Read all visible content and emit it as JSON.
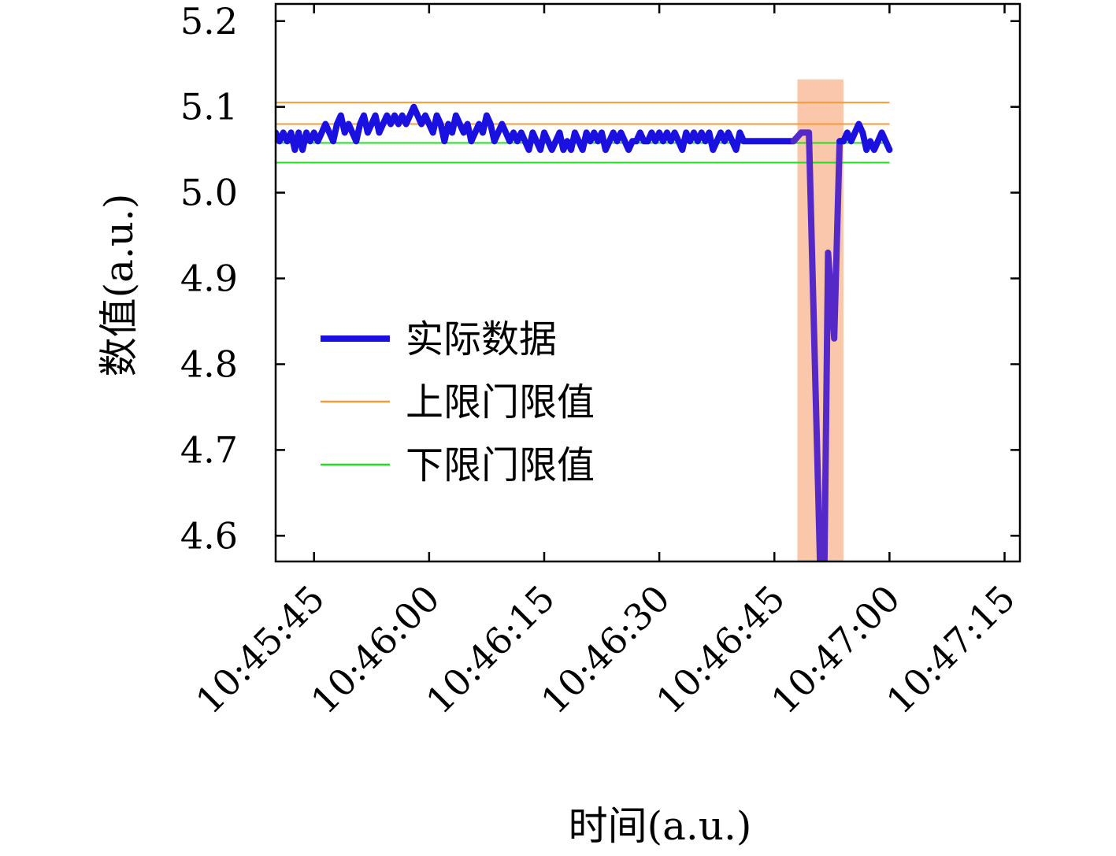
{
  "chart_data": {
    "type": "line",
    "title": "",
    "xlabel": "时间(a.u.)",
    "ylabel": "数值(a.u.)",
    "x_unit": "time",
    "xlim": [
      "10:45:40",
      "10:47:17"
    ],
    "ylim": [
      4.57,
      5.22
    ],
    "xticks": [
      "10:45:45",
      "10:46:00",
      "10:46:15",
      "10:46:30",
      "10:46:45",
      "10:47:00",
      "10:47:15"
    ],
    "yticks": [
      "4.6",
      "4.7",
      "4.8",
      "4.9",
      "5.0",
      "5.1",
      "5.2"
    ],
    "grid": false,
    "legend_position": "center-left",
    "series": [
      {
        "name": "实际数据",
        "color": "#1a10e0",
        "anomaly_color": "#5528c8",
        "points": [
          [
            "10:45:40.0",
            5.07
          ],
          [
            "10:45:40.5",
            5.06
          ],
          [
            "10:45:41.0",
            5.07
          ],
          [
            "10:45:41.5",
            5.06
          ],
          [
            "10:45:42.0",
            5.07
          ],
          [
            "10:45:42.5",
            5.05
          ],
          [
            "10:45:43.0",
            5.07
          ],
          [
            "10:45:43.5",
            5.05
          ],
          [
            "10:45:44.0",
            5.07
          ],
          [
            "10:45:44.5",
            5.06
          ],
          [
            "10:45:45.0",
            5.07
          ],
          [
            "10:45:45.5",
            5.06
          ],
          [
            "10:45:46.0",
            5.07
          ],
          [
            "10:45:46.5",
            5.08
          ],
          [
            "10:45:47.0",
            5.07
          ],
          [
            "10:45:47.5",
            5.06
          ],
          [
            "10:45:48.0",
            5.08
          ],
          [
            "10:45:48.5",
            5.09
          ],
          [
            "10:45:49.0",
            5.07
          ],
          [
            "10:45:49.5",
            5.08
          ],
          [
            "10:45:50.0",
            5.07
          ],
          [
            "10:45:50.5",
            5.06
          ],
          [
            "10:45:51.0",
            5.08
          ],
          [
            "10:45:51.5",
            5.09
          ],
          [
            "10:45:52.0",
            5.07
          ],
          [
            "10:45:52.5",
            5.08
          ],
          [
            "10:45:53.0",
            5.09
          ],
          [
            "10:45:53.5",
            5.07
          ],
          [
            "10:45:54.0",
            5.08
          ],
          [
            "10:45:54.5",
            5.09
          ],
          [
            "10:45:55.0",
            5.08
          ],
          [
            "10:45:55.5",
            5.09
          ],
          [
            "10:45:56.0",
            5.08
          ],
          [
            "10:45:56.5",
            5.09
          ],
          [
            "10:45:57.0",
            5.08
          ],
          [
            "10:45:57.5",
            5.09
          ],
          [
            "10:45:58.0",
            5.1
          ],
          [
            "10:45:58.5",
            5.09
          ],
          [
            "10:45:59.0",
            5.08
          ],
          [
            "10:45:59.5",
            5.09
          ],
          [
            "10:46:00.0",
            5.08
          ],
          [
            "10:46:00.5",
            5.07
          ],
          [
            "10:46:01.0",
            5.09
          ],
          [
            "10:46:01.5",
            5.08
          ],
          [
            "10:46:02.0",
            5.06
          ],
          [
            "10:46:02.5",
            5.08
          ],
          [
            "10:46:03.0",
            5.07
          ],
          [
            "10:46:03.5",
            5.09
          ],
          [
            "10:46:04.0",
            5.08
          ],
          [
            "10:46:04.5",
            5.07
          ],
          [
            "10:46:05.0",
            5.08
          ],
          [
            "10:46:05.5",
            5.06
          ],
          [
            "10:46:06.0",
            5.07
          ],
          [
            "10:46:06.5",
            5.08
          ],
          [
            "10:46:07.0",
            5.07
          ],
          [
            "10:46:07.5",
            5.09
          ],
          [
            "10:46:08.0",
            5.08
          ],
          [
            "10:46:08.5",
            5.06
          ],
          [
            "10:46:09.0",
            5.07
          ],
          [
            "10:46:09.5",
            5.08
          ],
          [
            "10:46:10.0",
            5.07
          ],
          [
            "10:46:10.5",
            5.06
          ],
          [
            "10:46:11.0",
            5.07
          ],
          [
            "10:46:11.5",
            5.06
          ],
          [
            "10:46:12.0",
            5.07
          ],
          [
            "10:46:12.5",
            5.06
          ],
          [
            "10:46:13.0",
            5.05
          ],
          [
            "10:46:13.5",
            5.07
          ],
          [
            "10:46:14.0",
            5.06
          ],
          [
            "10:46:14.5",
            5.05
          ],
          [
            "10:46:15.0",
            5.07
          ],
          [
            "10:46:15.5",
            5.06
          ],
          [
            "10:46:16.0",
            5.05
          ],
          [
            "10:46:16.5",
            5.06
          ],
          [
            "10:46:17.0",
            5.07
          ],
          [
            "10:46:17.5",
            5.05
          ],
          [
            "10:46:18.0",
            5.06
          ],
          [
            "10:46:18.5",
            5.05
          ],
          [
            "10:46:19.0",
            5.07
          ],
          [
            "10:46:19.5",
            5.06
          ],
          [
            "10:46:20.0",
            5.05
          ],
          [
            "10:46:20.5",
            5.07
          ],
          [
            "10:46:21.0",
            5.06
          ],
          [
            "10:46:21.5",
            5.07
          ],
          [
            "10:46:22.0",
            5.06
          ],
          [
            "10:46:22.5",
            5.07
          ],
          [
            "10:46:23.0",
            5.05
          ],
          [
            "10:46:23.5",
            5.06
          ],
          [
            "10:46:24.0",
            5.07
          ],
          [
            "10:46:24.5",
            5.06
          ],
          [
            "10:46:25.0",
            5.07
          ],
          [
            "10:46:25.5",
            5.06
          ],
          [
            "10:46:26.0",
            5.05
          ],
          [
            "10:46:26.5",
            5.06
          ],
          [
            "10:46:27.0",
            5.06
          ],
          [
            "10:46:27.5",
            5.07
          ],
          [
            "10:46:28.0",
            5.06
          ],
          [
            "10:46:28.5",
            5.06
          ],
          [
            "10:46:29.0",
            5.07
          ],
          [
            "10:46:29.5",
            5.06
          ],
          [
            "10:46:30.0",
            5.07
          ],
          [
            "10:46:30.5",
            5.06
          ],
          [
            "10:46:31.0",
            5.07
          ],
          [
            "10:46:31.5",
            5.06
          ],
          [
            "10:46:32.0",
            5.07
          ],
          [
            "10:46:32.5",
            5.06
          ],
          [
            "10:46:33.0",
            5.05
          ],
          [
            "10:46:33.5",
            5.07
          ],
          [
            "10:46:34.0",
            5.06
          ],
          [
            "10:46:34.5",
            5.07
          ],
          [
            "10:46:35.0",
            5.06
          ],
          [
            "10:46:35.5",
            5.07
          ],
          [
            "10:46:36.0",
            5.06
          ],
          [
            "10:46:36.5",
            5.07
          ],
          [
            "10:46:37.0",
            5.05
          ],
          [
            "10:46:37.5",
            5.06
          ],
          [
            "10:46:38.0",
            5.07
          ],
          [
            "10:46:38.5",
            5.06
          ],
          [
            "10:46:39.0",
            5.07
          ],
          [
            "10:46:39.5",
            5.06
          ],
          [
            "10:46:40.0",
            5.05
          ],
          [
            "10:46:40.5",
            5.07
          ],
          [
            "10:46:41.0",
            5.06
          ],
          [
            "10:46:41.5",
            5.06
          ],
          [
            "10:46:42.0",
            5.06
          ],
          [
            "10:46:42.5",
            5.06
          ],
          [
            "10:46:43.0",
            5.06
          ],
          [
            "10:46:43.5",
            5.06
          ],
          [
            "10:46:44.0",
            5.06
          ],
          [
            "10:46:44.5",
            5.06
          ],
          [
            "10:46:45.0",
            5.06
          ],
          [
            "10:46:45.5",
            5.06
          ],
          [
            "10:46:46.0",
            5.06
          ],
          [
            "10:46:46.5",
            5.06
          ],
          [
            "10:46:47.0",
            5.06
          ],
          [
            "10:46:47.5",
            5.06
          ],
          [
            "10:46:48.5",
            5.07
          ],
          [
            "10:46:49.5",
            5.07
          ],
          [
            "10:46:51.0",
            4.55
          ],
          [
            "10:46:51.5",
            4.55
          ],
          [
            "10:46:52.0",
            4.93
          ],
          [
            "10:46:52.8",
            4.83
          ],
          [
            "10:46:53.5",
            5.06
          ],
          [
            "10:46:54.0",
            5.06
          ],
          [
            "10:46:54.5",
            5.07
          ],
          [
            "10:46:55.0",
            5.06
          ],
          [
            "10:46:55.5",
            5.07
          ],
          [
            "10:46:56.0",
            5.08
          ],
          [
            "10:46:56.5",
            5.07
          ],
          [
            "10:46:57.0",
            5.05
          ],
          [
            "10:46:57.5",
            5.06
          ],
          [
            "10:46:58.0",
            5.05
          ],
          [
            "10:46:58.5",
            5.06
          ],
          [
            "10:46:59.0",
            5.07
          ],
          [
            "10:46:59.5",
            5.06
          ],
          [
            "10:47:00.0",
            5.05
          ]
        ]
      },
      {
        "name": "上限门限值",
        "color": "#f39a3a",
        "y": [
          5.105,
          5.08
        ],
        "x_end": "10:47:00"
      },
      {
        "name": "下限门限值",
        "color": "#22dd22",
        "y": [
          5.058,
          5.035
        ],
        "x_end": "10:47:00"
      }
    ],
    "highlight_region": {
      "x": [
        "10:46:48",
        "10:46:54"
      ],
      "y": [
        4.57,
        5.132
      ],
      "color": "#fbc7aa"
    }
  }
}
